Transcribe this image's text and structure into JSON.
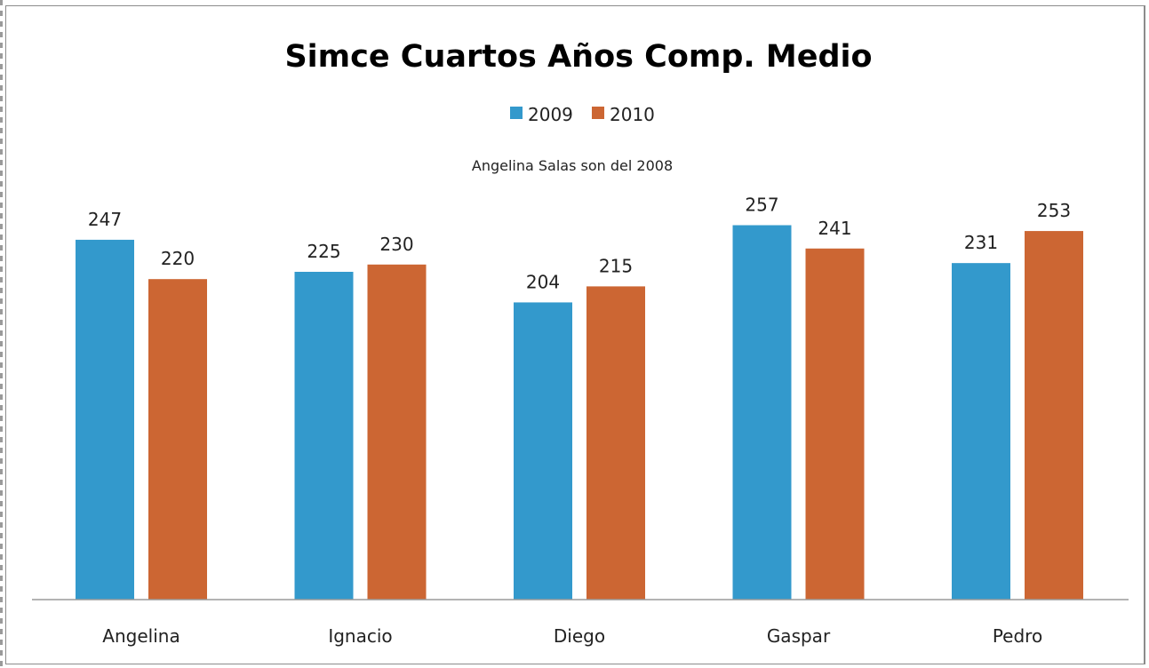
{
  "chart_data": {
    "type": "bar",
    "title": "Simce Cuartos Años Comp. Medio",
    "annotation": "Angelina Salas son del 2008",
    "categories": [
      "Angelina",
      "Ignacio",
      "Diego",
      "Gaspar",
      "Pedro"
    ],
    "series": [
      {
        "name": "2009",
        "color": "#3399cc",
        "values": [
          247,
          225,
          204,
          257,
          231
        ]
      },
      {
        "name": "2010",
        "color": "#cc6633",
        "values": [
          220,
          230,
          215,
          241,
          253
        ]
      }
    ],
    "ylim": [
      0,
      300
    ],
    "grid": false,
    "legend_position": "top-center",
    "data_labels": true
  }
}
